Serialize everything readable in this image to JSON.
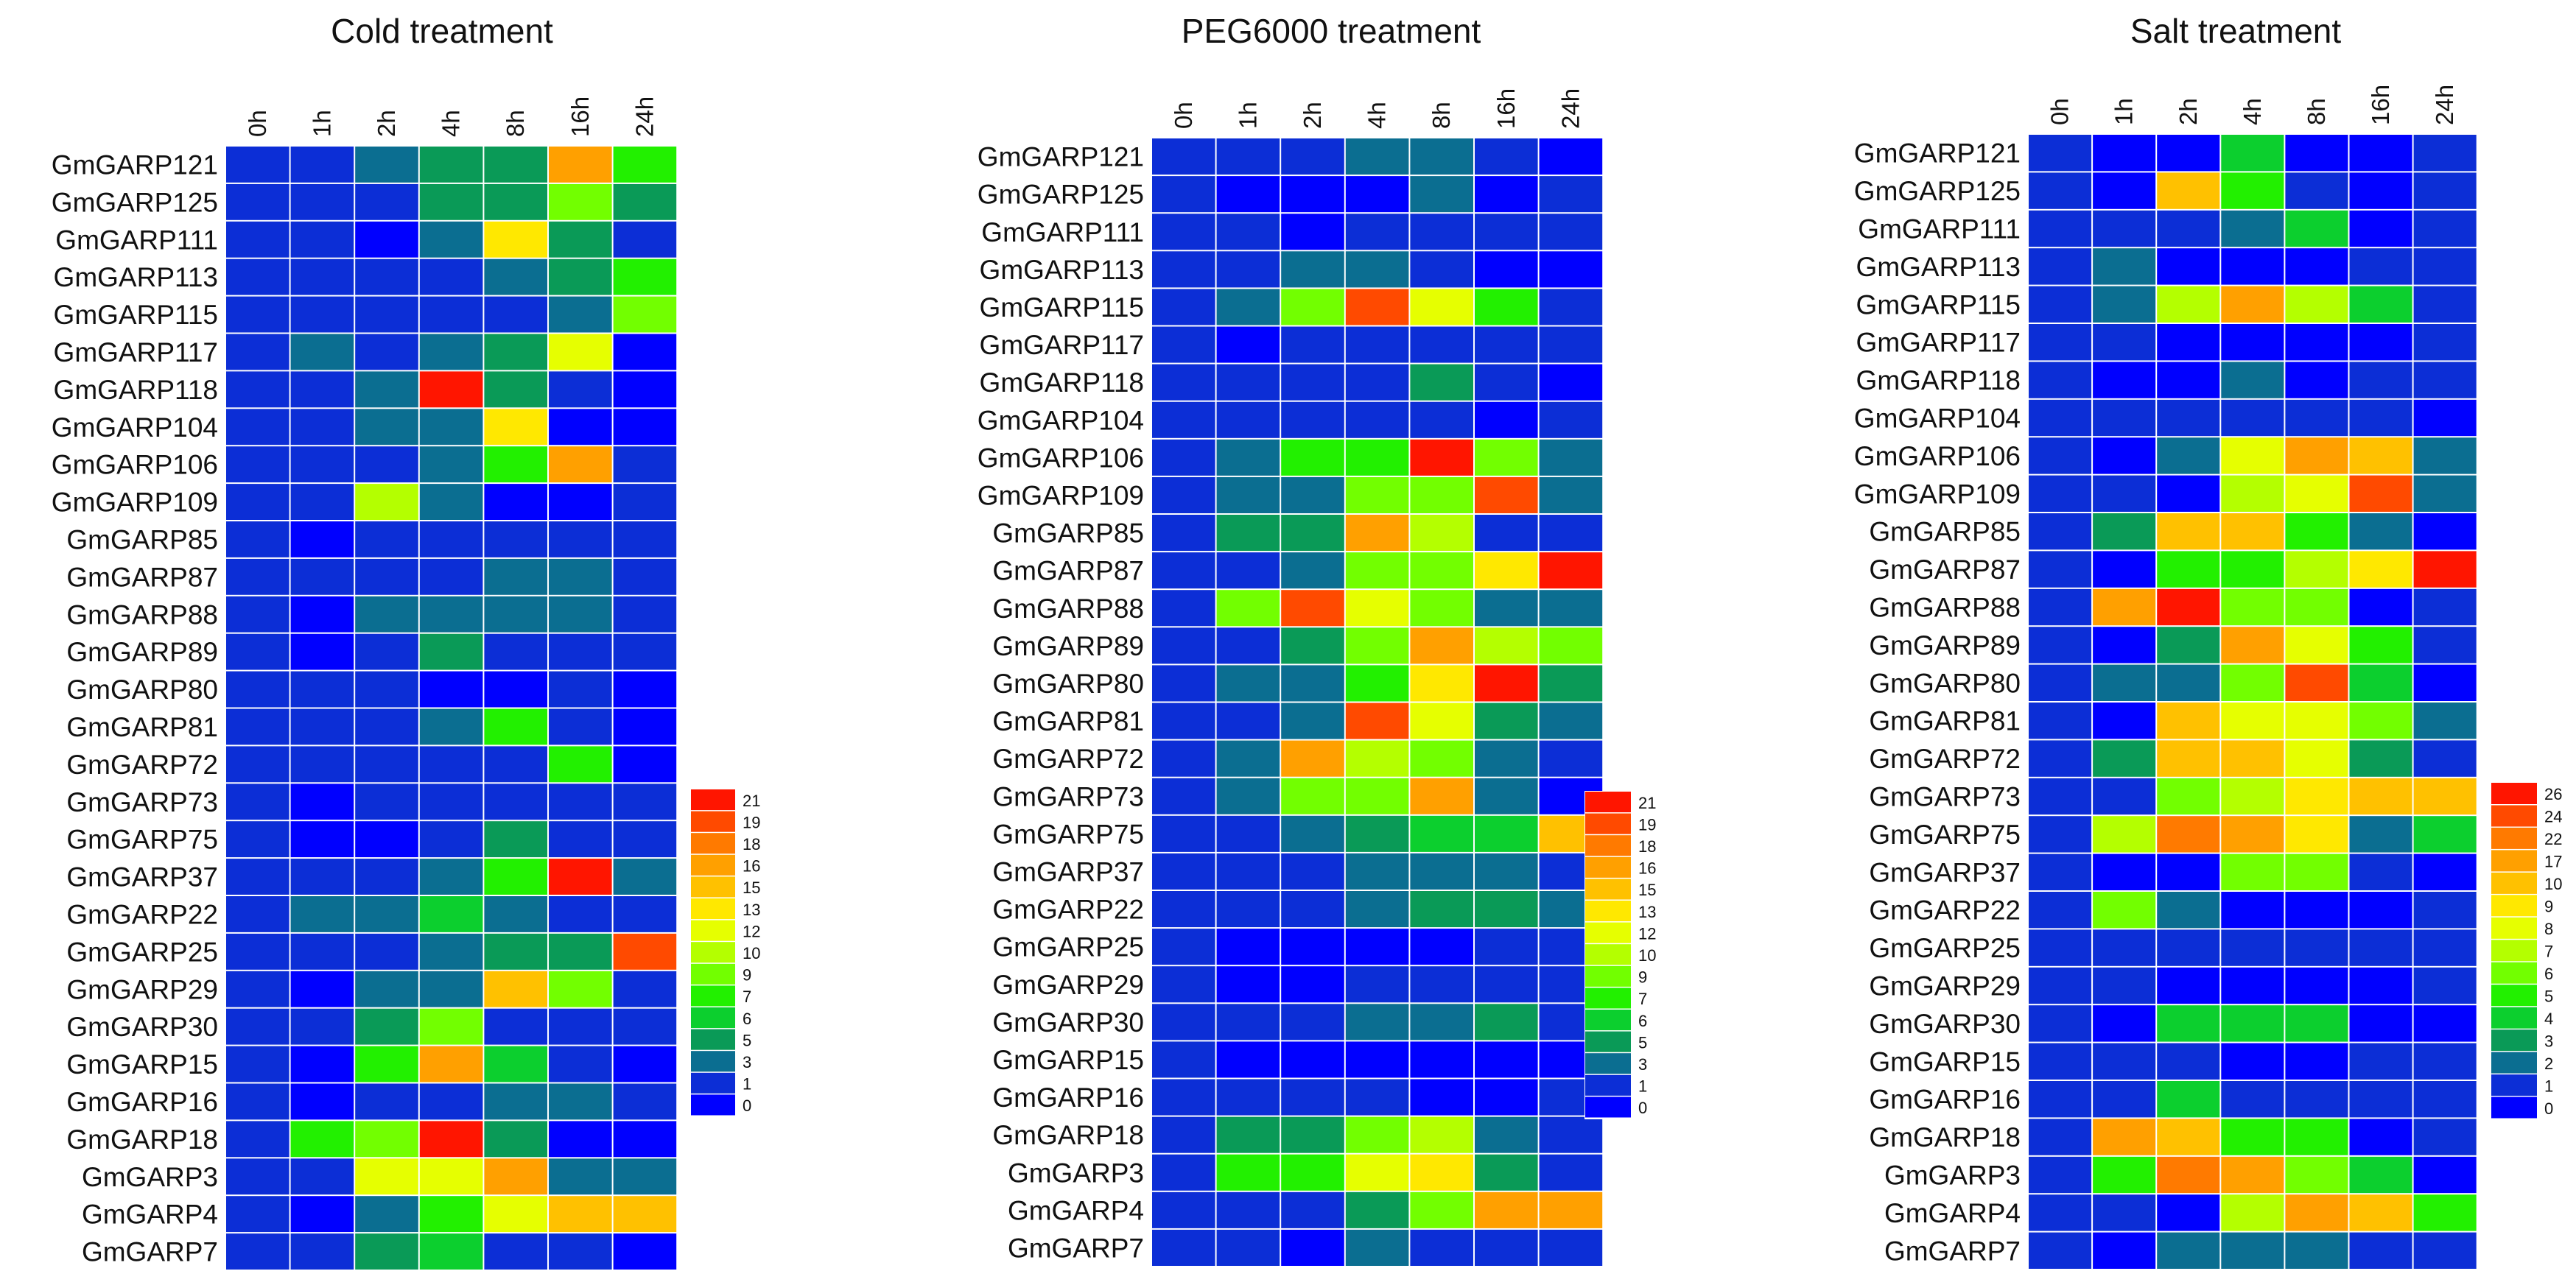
{
  "chart_data": [
    {
      "type": "heatmap",
      "title": "Cold treatment",
      "xlabel": "",
      "ylabel": "",
      "x": [
        "0h",
        "1h",
        "2h",
        "4h",
        "8h",
        "16h",
        "24h"
      ],
      "y": [
        "GmGARP121",
        "GmGARP125",
        "GmGARP111",
        "GmGARP113",
        "GmGARP115",
        "GmGARP117",
        "GmGARP118",
        "GmGARP104",
        "GmGARP106",
        "GmGARP109",
        "GmGARP85",
        "GmGARP87",
        "GmGARP88",
        "GmGARP89",
        "GmGARP80",
        "GmGARP81",
        "GmGARP72",
        "GmGARP73",
        "GmGARP75",
        "GmGARP37",
        "GmGARP22",
        "GmGARP25",
        "GmGARP29",
        "GmGARP30",
        "GmGARP15",
        "GmGARP16",
        "GmGARP18",
        "GmGARP3",
        "GmGARP4",
        "GmGARP7"
      ],
      "values": [
        [
          1,
          1,
          3,
          5,
          5,
          16,
          7
        ],
        [
          1,
          1,
          1,
          5,
          5,
          9,
          5
        ],
        [
          1,
          1,
          0,
          3,
          13,
          5,
          1
        ],
        [
          1,
          1,
          1,
          1,
          3,
          5,
          7
        ],
        [
          1,
          1,
          1,
          1,
          1,
          3,
          9
        ],
        [
          1,
          3,
          1,
          3,
          5,
          12,
          0
        ],
        [
          1,
          1,
          3,
          21,
          5,
          1,
          0
        ],
        [
          1,
          1,
          3,
          3,
          13,
          0,
          0
        ],
        [
          1,
          1,
          1,
          3,
          8,
          16,
          1
        ],
        [
          1,
          1,
          10,
          3,
          0,
          0,
          1
        ],
        [
          1,
          0,
          1,
          1,
          1,
          1,
          1
        ],
        [
          1,
          1,
          1,
          1,
          3,
          3,
          1
        ],
        [
          1,
          0,
          3,
          3,
          3,
          3,
          1
        ],
        [
          1,
          0,
          1,
          5,
          1,
          1,
          1
        ],
        [
          1,
          1,
          1,
          0,
          0,
          1,
          0
        ],
        [
          1,
          1,
          1,
          3,
          8,
          1,
          0
        ],
        [
          1,
          1,
          1,
          1,
          1,
          7,
          0
        ],
        [
          1,
          0,
          1,
          1,
          1,
          1,
          1
        ],
        [
          1,
          0,
          0,
          1,
          5,
          1,
          1
        ],
        [
          1,
          1,
          1,
          3,
          7,
          21,
          3
        ],
        [
          1,
          3,
          3,
          6,
          3,
          1,
          1
        ],
        [
          1,
          1,
          1,
          3,
          5,
          5,
          19
        ],
        [
          1,
          0,
          3,
          3,
          15,
          9,
          1
        ],
        [
          1,
          1,
          5,
          9,
          1,
          1,
          1
        ],
        [
          1,
          0,
          8,
          17,
          6,
          1,
          0
        ],
        [
          1,
          0,
          1,
          1,
          3,
          3,
          1
        ],
        [
          1,
          8,
          9,
          21,
          5,
          0,
          0
        ],
        [
          1,
          1,
          12,
          12,
          16,
          3,
          3
        ],
        [
          1,
          0,
          3,
          8,
          12,
          15,
          15
        ],
        [
          1,
          1,
          5,
          6,
          1,
          1,
          0
        ]
      ],
      "colorbar_ticks": [
        "21",
        "19",
        "18",
        "16",
        "15",
        "13",
        "12",
        "10",
        "9",
        "7",
        "6",
        "5",
        "3",
        "1",
        "0"
      ]
    },
    {
      "type": "heatmap",
      "title": "PEG6000 treatment",
      "xlabel": "",
      "ylabel": "",
      "x": [
        "0h",
        "1h",
        "2h",
        "4h",
        "8h",
        "16h",
        "24h"
      ],
      "y": [
        "GmGARP121",
        "GmGARP125",
        "GmGARP111",
        "GmGARP113",
        "GmGARP115",
        "GmGARP117",
        "GmGARP118",
        "GmGARP104",
        "GmGARP106",
        "GmGARP109",
        "GmGARP85",
        "GmGARP87",
        "GmGARP88",
        "GmGARP89",
        "GmGARP80",
        "GmGARP81",
        "GmGARP72",
        "GmGARP73",
        "GmGARP75",
        "GmGARP37",
        "GmGARP22",
        "GmGARP25",
        "GmGARP29",
        "GmGARP30",
        "GmGARP15",
        "GmGARP16",
        "GmGARP18",
        "GmGARP3",
        "GmGARP4",
        "GmGARP7"
      ],
      "values": [
        [
          1,
          1,
          1,
          3,
          3,
          1,
          0
        ],
        [
          1,
          0,
          0,
          0,
          3,
          0,
          1
        ],
        [
          1,
          1,
          0,
          1,
          1,
          1,
          1
        ],
        [
          1,
          1,
          3,
          3,
          1,
          0,
          0
        ],
        [
          1,
          3,
          9,
          19,
          12,
          7,
          1
        ],
        [
          1,
          0,
          1,
          1,
          1,
          1,
          1
        ],
        [
          1,
          1,
          1,
          1,
          5,
          1,
          0
        ],
        [
          1,
          1,
          1,
          1,
          1,
          0,
          1
        ],
        [
          1,
          3,
          7,
          7,
          21,
          9,
          3
        ],
        [
          1,
          3,
          3,
          9,
          9,
          19,
          3
        ],
        [
          1,
          5,
          5,
          17,
          10,
          1,
          1
        ],
        [
          1,
          1,
          3,
          9,
          9,
          13,
          21
        ],
        [
          1,
          9,
          19,
          12,
          9,
          3,
          3
        ],
        [
          1,
          1,
          5,
          9,
          16,
          10,
          9
        ],
        [
          1,
          3,
          3,
          7,
          13,
          21,
          5
        ],
        [
          1,
          1,
          3,
          19,
          12,
          5,
          3
        ],
        [
          1,
          3,
          16,
          10,
          9,
          3,
          1
        ],
        [
          1,
          3,
          9,
          9,
          17,
          3,
          0
        ],
        [
          1,
          1,
          3,
          5,
          6,
          6,
          15
        ],
        [
          1,
          1,
          1,
          3,
          3,
          3,
          1
        ],
        [
          1,
          1,
          1,
          3,
          5,
          5,
          3
        ],
        [
          1,
          0,
          0,
          0,
          0,
          1,
          1
        ],
        [
          1,
          0,
          0,
          1,
          1,
          1,
          1
        ],
        [
          1,
          1,
          1,
          3,
          3,
          5,
          1
        ],
        [
          1,
          0,
          0,
          0,
          0,
          0,
          0
        ],
        [
          1,
          1,
          1,
          1,
          0,
          0,
          1
        ],
        [
          1,
          5,
          5,
          9,
          10,
          3,
          1
        ],
        [
          1,
          7,
          7,
          12,
          13,
          5,
          1
        ],
        [
          1,
          1,
          1,
          5,
          9,
          16,
          16
        ],
        [
          1,
          1,
          0,
          3,
          1,
          1,
          1
        ]
      ],
      "colorbar_ticks": [
        "21",
        "19",
        "18",
        "16",
        "15",
        "13",
        "12",
        "10",
        "9",
        "7",
        "6",
        "5",
        "3",
        "1",
        "0"
      ]
    },
    {
      "type": "heatmap",
      "title": "Salt treatment",
      "xlabel": "",
      "ylabel": "",
      "x": [
        "0h",
        "1h",
        "2h",
        "4h",
        "8h",
        "16h",
        "24h"
      ],
      "y": [
        "GmGARP121",
        "GmGARP125",
        "GmGARP111",
        "GmGARP113",
        "GmGARP115",
        "GmGARP117",
        "GmGARP118",
        "GmGARP104",
        "GmGARP106",
        "GmGARP109",
        "GmGARP85",
        "GmGARP87",
        "GmGARP88",
        "GmGARP89",
        "GmGARP80",
        "GmGARP81",
        "GmGARP72",
        "GmGARP73",
        "GmGARP75",
        "GmGARP37",
        "GmGARP22",
        "GmGARP25",
        "GmGARP29",
        "GmGARP30",
        "GmGARP15",
        "GmGARP16",
        "GmGARP18",
        "GmGARP3",
        "GmGARP4",
        "GmGARP7"
      ],
      "values": [
        [
          1,
          0,
          0,
          4,
          0,
          0,
          1
        ],
        [
          1,
          0,
          10,
          5,
          1,
          0,
          1
        ],
        [
          1,
          1,
          1,
          2,
          4,
          0,
          1
        ],
        [
          1,
          2,
          0,
          0,
          0,
          1,
          1
        ],
        [
          1,
          2,
          7,
          17,
          7,
          4,
          1
        ],
        [
          1,
          1,
          0,
          0,
          0,
          0,
          1
        ],
        [
          1,
          0,
          0,
          2,
          0,
          1,
          1
        ],
        [
          1,
          1,
          1,
          1,
          1,
          1,
          0
        ],
        [
          1,
          0,
          2,
          8,
          17,
          10,
          2
        ],
        [
          1,
          1,
          0,
          7,
          8,
          24,
          2
        ],
        [
          1,
          3,
          10,
          10,
          5,
          2,
          0
        ],
        [
          1,
          0,
          5,
          5,
          7,
          9,
          26
        ],
        [
          1,
          17,
          26,
          6,
          6,
          0,
          1
        ],
        [
          1,
          0,
          3,
          17,
          8,
          5,
          1
        ],
        [
          1,
          2,
          2,
          6,
          24,
          4,
          0
        ],
        [
          1,
          0,
          10,
          8,
          8,
          6,
          2
        ],
        [
          1,
          3,
          16,
          16,
          8,
          3,
          1
        ],
        [
          1,
          1,
          6,
          7,
          9,
          10,
          10
        ],
        [
          1,
          7,
          22,
          17,
          9,
          2,
          4
        ],
        [
          1,
          0,
          0,
          6,
          6,
          1,
          0
        ],
        [
          1,
          6,
          2,
          0,
          0,
          0,
          1
        ],
        [
          1,
          1,
          1,
          1,
          1,
          1,
          1
        ],
        [
          1,
          1,
          0,
          0,
          0,
          0,
          1
        ],
        [
          1,
          0,
          4,
          4,
          4,
          0,
          0
        ],
        [
          1,
          1,
          1,
          0,
          0,
          1,
          1
        ],
        [
          1,
          1,
          4,
          1,
          1,
          1,
          1
        ],
        [
          1,
          17,
          10,
          5,
          5,
          0,
          1
        ],
        [
          1,
          5,
          22,
          17,
          6,
          4,
          0
        ],
        [
          1,
          1,
          0,
          7,
          17,
          10,
          5
        ],
        [
          1,
          0,
          2,
          2,
          2,
          1,
          1
        ]
      ],
      "colorbar_ticks": [
        "26",
        "24",
        "22",
        "17",
        "10",
        "9",
        "8",
        "7",
        "6",
        "5",
        "4",
        "3",
        "2",
        "1",
        "0"
      ]
    }
  ]
}
